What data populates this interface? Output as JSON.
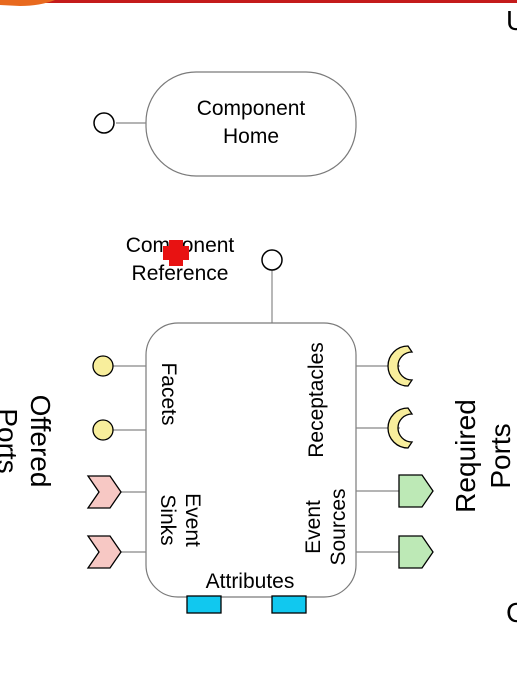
{
  "home": {
    "line1": "Component",
    "line2": "Home"
  },
  "reference": {
    "line1": "Component",
    "line2": "Reference"
  },
  "facets": "Facets",
  "event_sinks": {
    "line1": "Event",
    "line2": "Sinks"
  },
  "receptacles": "Receptacles",
  "event_sources": {
    "line1": "Event",
    "line2": "Sources"
  },
  "attributes": "Attributes",
  "offered_ports": {
    "line1": "Offered",
    "line2": "Ports"
  },
  "required_ports": {
    "line1": "Required",
    "line2": "Ports"
  },
  "edge_right_top": "U",
  "edge_right_bottom": "C",
  "colors": {
    "facet": "#f8ee9c",
    "sink": "#f7c8c4",
    "source": "#bde9b6",
    "attribute": "#11c8ef",
    "cursor": "#e81212",
    "topbar": "#c41b1b"
  }
}
